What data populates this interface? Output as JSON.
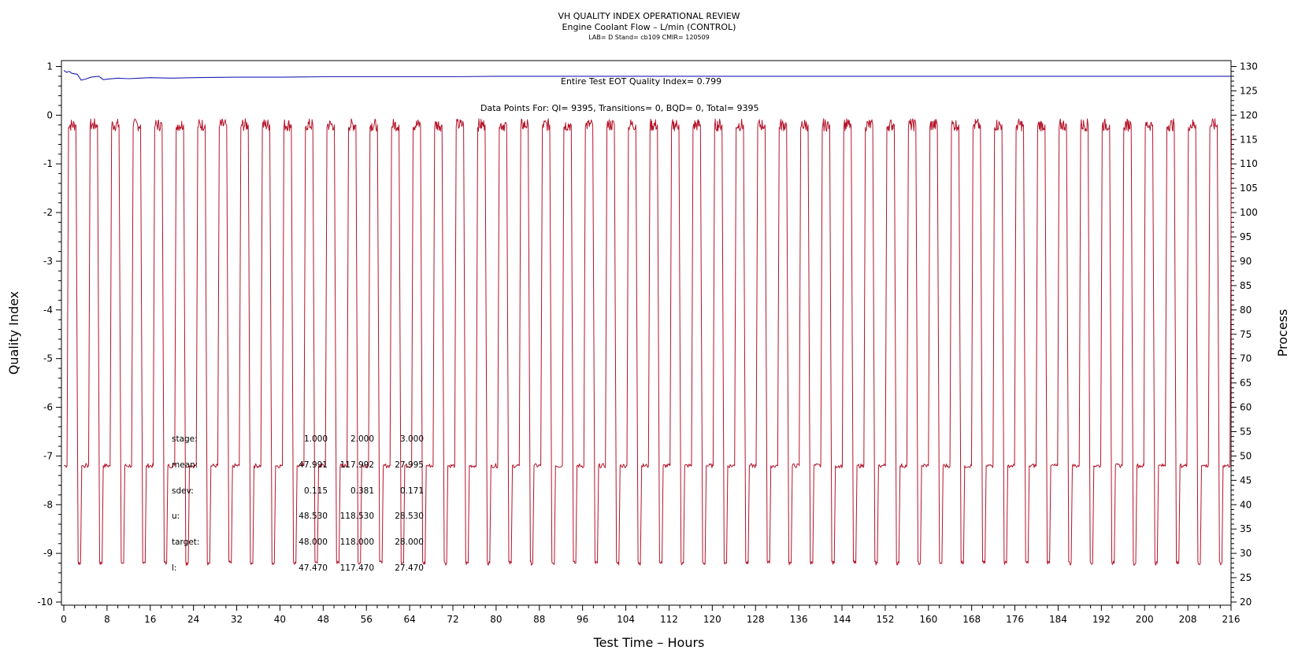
{
  "chart_data": {
    "type": "line",
    "title": "VH QUALITY INDEX OPERATIONAL REVIEW",
    "subtitle": "Engine Coolant Flow – L/min (CONTROL)",
    "subtitle2": "LAB= D Stand= cb109 CMIR= 120509",
    "xlabel": "Test Time – Hours",
    "ylabel_left": "Quality Index",
    "ylabel_right": "Process",
    "xlim": [
      0,
      216
    ],
    "ylim_left": [
      -10,
      1
    ],
    "ylim_right": [
      20,
      130
    ],
    "x_ticks": [
      "0",
      "8",
      "16",
      "24",
      "32",
      "40",
      "48",
      "56",
      "64",
      "72",
      "80",
      "88",
      "96",
      "104",
      "112",
      "120",
      "128",
      "136",
      "144",
      "152",
      "160",
      "168",
      "176",
      "184",
      "192",
      "200",
      "208",
      "216"
    ],
    "y_left_ticks": [
      "1",
      "0",
      "-1",
      "-2",
      "-3",
      "-4",
      "-5",
      "-6",
      "-7",
      "-8",
      "-9",
      "-10"
    ],
    "y_right_ticks": [
      "130",
      "125",
      "120",
      "115",
      "110",
      "105",
      "100",
      "95",
      "90",
      "85",
      "80",
      "75",
      "70",
      "65",
      "60",
      "55",
      "50",
      "45",
      "40",
      "35",
      "30",
      "25",
      "20"
    ],
    "grid": false,
    "annotations": {
      "eot_qi": "Entire Test EOT Quality Index=   0.799",
      "data_points": "Data Points For: QI=  9395, Transitions=     0, BQD=     0, Total=  9395"
    },
    "stats_table": {
      "rows": [
        {
          "label": "stage:",
          "values": [
            "1.000",
            "2.000",
            "3.000"
          ]
        },
        {
          "label": "mean:",
          "values": [
            "47.991",
            "117.992",
            "27.995"
          ]
        },
        {
          "label": "sdev:",
          "values": [
            "0.115",
            "0.381",
            "0.171"
          ]
        },
        {
          "label": "u:",
          "values": [
            "48.530",
            "118.530",
            "28.530"
          ]
        },
        {
          "label": "target:",
          "values": [
            "48.000",
            "118.000",
            "28.000"
          ]
        },
        {
          "label": "l:",
          "values": [
            "47.470",
            "117.470",
            "27.470"
          ]
        }
      ]
    },
    "series": [
      {
        "name": "Quality Index",
        "axis": "left",
        "color": "#1f1fb4",
        "x": [
          0,
          0.5,
          1.0,
          1.5,
          2.5,
          3.2,
          4,
          5,
          6.5,
          7.3,
          8,
          10,
          12,
          14,
          16,
          20,
          24,
          32,
          40,
          48,
          56,
          64,
          72,
          80,
          96,
          112,
          128,
          144,
          160,
          176,
          184,
          200,
          216
        ],
        "values": [
          0.92,
          0.88,
          0.9,
          0.86,
          0.84,
          0.72,
          0.74,
          0.78,
          0.8,
          0.73,
          0.74,
          0.76,
          0.75,
          0.76,
          0.77,
          0.76,
          0.77,
          0.78,
          0.78,
          0.79,
          0.79,
          0.79,
          0.79,
          0.8,
          0.8,
          0.8,
          0.8,
          0.8,
          0.8,
          0.8,
          0.8,
          0.799,
          0.799
        ]
      },
      {
        "name": "Process",
        "axis": "right",
        "color": "#b4142a",
        "pattern": {
          "period_hours": 3.985,
          "first_cycle_start": 0.6,
          "levels": [
            48,
            118,
            28
          ],
          "cycles": 54,
          "end_level": 118
        }
      }
    ]
  }
}
